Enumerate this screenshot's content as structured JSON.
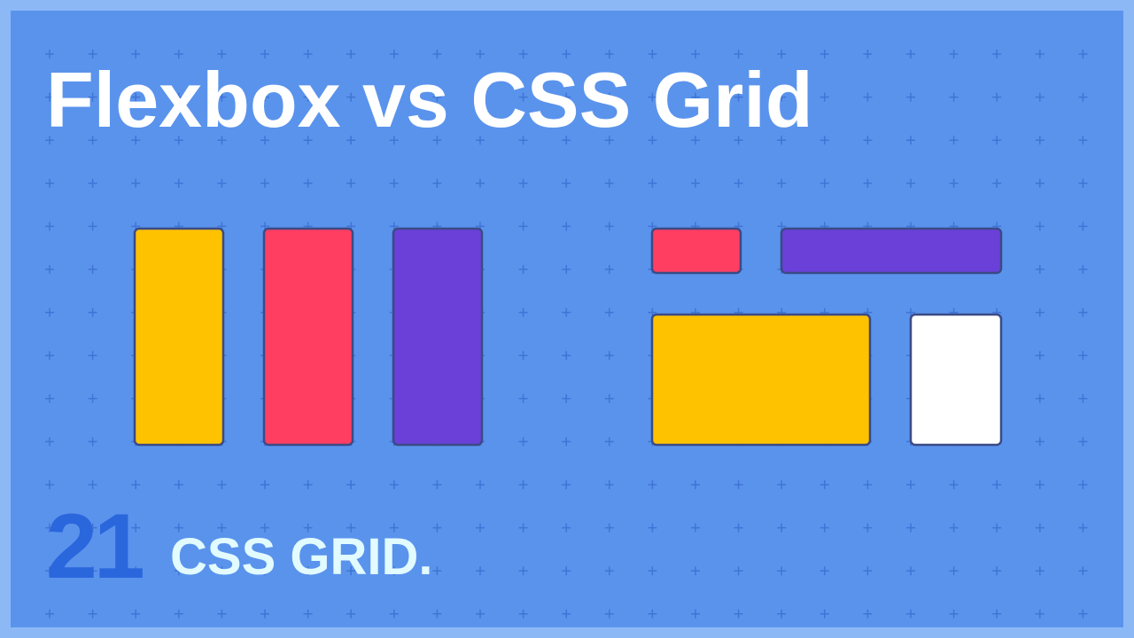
{
  "title": "Flexbox vs CSS Grid",
  "badge": {
    "number": "21",
    "label": "CSS GRID."
  }
}
